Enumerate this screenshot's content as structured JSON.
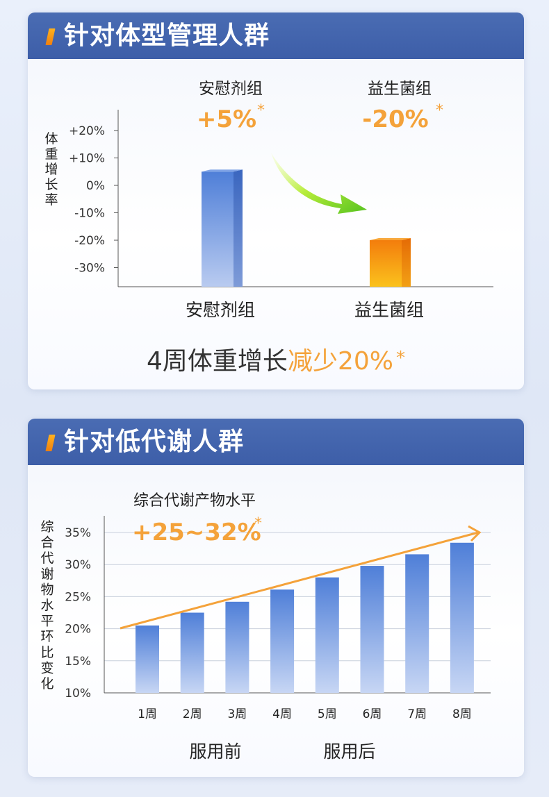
{
  "colors": {
    "header_bg": "#3d5ea8",
    "accent_orange": "#f4a23a",
    "bar_blue": "#4f7fd8",
    "bar_orange": "#f59a0e",
    "arrow_green": "#7fd02b"
  },
  "section1": {
    "title": "针对体型管理人群",
    "summary_prefix": "4周体重增长",
    "summary_highlight": "减少20%",
    "summary_star": "*",
    "chart_data": {
      "type": "bar",
      "ylabel": "体重增长率",
      "ylim": [
        -35,
        25
      ],
      "yticks": [
        "+20%",
        "+10%",
        "0%",
        "-10%",
        "-20%",
        "-30%"
      ],
      "ytick_values": [
        20,
        10,
        0,
        -10,
        -20,
        -30
      ],
      "categories": [
        "安慰剂组",
        "益生菌组"
      ],
      "values": [
        5,
        -20
      ],
      "value_labels": [
        "+5%",
        "-20%"
      ],
      "value_label_star": "*",
      "annotation_titles": [
        "安慰剂组",
        "益生菌组"
      ],
      "grid": false
    }
  },
  "section2": {
    "title": "针对低代谢人群",
    "chart_data": {
      "type": "bar",
      "ylabel": "综合代谢物水平环比变化",
      "ylim": [
        10,
        35
      ],
      "yticks": [
        "35%",
        "30%",
        "25%",
        "20%",
        "15%",
        "10%"
      ],
      "ytick_values": [
        35,
        30,
        25,
        20,
        15,
        10
      ],
      "categories": [
        "1周",
        "2周",
        "3周",
        "4周",
        "5周",
        "6周",
        "7周",
        "8周"
      ],
      "values": [
        20.5,
        22.5,
        24.2,
        26.1,
        28.0,
        29.8,
        31.6,
        33.4
      ],
      "annotation_title": "综合代谢产物水平",
      "annotation_value": "+25~32%",
      "annotation_star": "*",
      "period_labels": [
        "服用前",
        "服用后"
      ],
      "trend": "up",
      "grid": true
    }
  }
}
